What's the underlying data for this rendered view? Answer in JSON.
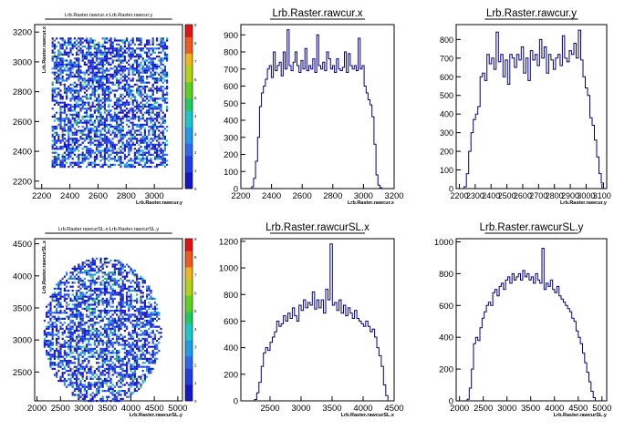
{
  "chart_data": [
    {
      "type": "heatmap",
      "title": "Lrb.Raster.rawcur.x:Lrb.Raster.rawcur.y",
      "xlabel": "Lrb.Raster.rawcur.y",
      "ylabel": "Lrb.Raster.rawcur.x",
      "xlim": [
        2150,
        3200
      ],
      "ylim": [
        2150,
        3250
      ],
      "xticks": [
        "2200",
        "2400",
        "2600",
        "2800",
        "3000"
      ],
      "yticks": [
        "3200",
        "3000",
        "2800",
        "2600",
        "2400",
        "2200"
      ],
      "zlim": [
        0,
        9
      ],
      "zticks": [
        "0",
        "1",
        "2",
        "3",
        "4",
        "5",
        "6",
        "7",
        "8",
        "9"
      ],
      "fill": {
        "shape": "rectangle",
        "x_range": [
          2270,
          3090
        ],
        "y_range": [
          2290,
          3170
        ]
      },
      "colors": {
        "low": "#1f2fd0",
        "high": "#ff0000"
      }
    },
    {
      "type": "bar",
      "title": "Lrb.Raster.rawcur.x",
      "xlabel": "Lrb.Raster.rawcur.x",
      "xlim": [
        2200,
        3200
      ],
      "ylim": [
        0,
        960
      ],
      "xticks": [
        "2200",
        "2400",
        "2600",
        "2800",
        "3000",
        "3200"
      ],
      "yticks": [
        "0",
        "100",
        "200",
        "300",
        "400",
        "500",
        "600",
        "700",
        "800",
        "900"
      ],
      "bin_edges": [
        2270,
        3120
      ],
      "values": [
        10,
        60,
        160,
        300,
        480,
        560,
        600,
        640,
        700,
        720,
        650,
        800,
        690,
        720,
        740,
        660,
        800,
        700,
        930,
        720,
        690,
        740,
        800,
        720,
        680,
        750,
        700,
        820,
        690,
        720,
        700,
        760,
        680,
        900,
        720,
        700,
        740,
        690,
        800,
        760,
        700,
        720,
        680,
        760,
        700,
        690,
        710,
        800,
        680,
        790,
        720,
        700,
        720,
        690,
        880,
        700,
        720,
        600,
        560,
        520,
        490,
        420,
        260,
        80,
        20,
        5
      ],
      "colors": {
        "line": "#000080"
      }
    },
    {
      "type": "bar",
      "title": "Lrb.Raster.rawcur.y",
      "xlabel": "Lrb.Raster.rawcur.y",
      "xlim": [
        2180,
        3130
      ],
      "ylim": [
        0,
        880
      ],
      "xticks": [
        "2200",
        "2300",
        "2400",
        "2500",
        "2600",
        "2700",
        "2800",
        "2900",
        "3000",
        "3100"
      ],
      "yticks": [
        "0",
        "100",
        "200",
        "300",
        "400",
        "500",
        "600",
        "700",
        "800"
      ],
      "bin_edges": [
        2230,
        3110
      ],
      "values": [
        10,
        80,
        200,
        300,
        370,
        400,
        440,
        600,
        620,
        580,
        720,
        670,
        700,
        640,
        840,
        680,
        720,
        600,
        690,
        560,
        720,
        700,
        650,
        720,
        690,
        760,
        620,
        700,
        580,
        740,
        690,
        720,
        660,
        800,
        700,
        760,
        620,
        720,
        690,
        640,
        700,
        720,
        660,
        820,
        700,
        680,
        740,
        720,
        780,
        700,
        850,
        690,
        600,
        540,
        500,
        380,
        340,
        260,
        170,
        80,
        30
      ],
      "colors": {
        "line": "#000080"
      }
    },
    {
      "type": "heatmap",
      "title": "Lrb.Raster.rawcurSL.x:Lrb.Raster.rawcurSL.y",
      "xlabel": "Lrb.Raster.rawcurSL.y",
      "ylabel": "Lrb.Raster.rawcurSL.x",
      "xlim": [
        1950,
        5100
      ],
      "ylim": [
        2050,
        4580
      ],
      "xticks": [
        "2000",
        "2500",
        "3000",
        "3500",
        "4000",
        "4500",
        "5000"
      ],
      "yticks": [
        "4500",
        "4000",
        "3500",
        "3000",
        "2500"
      ],
      "zlim": [
        0,
        9
      ],
      "zticks": [
        "0",
        "1",
        "2",
        "3",
        "4",
        "5",
        "6",
        "7",
        "8",
        "9"
      ],
      "fill": {
        "shape": "ellipse",
        "cx": 3370,
        "cy": 3150,
        "rx": 1260,
        "ry": 1150
      },
      "colors": {
        "low": "#1f2fd0",
        "high": "#ff0000"
      }
    },
    {
      "type": "bar",
      "title": "Lrb.Raster.rawcurSL.x",
      "xlabel": "Lrb.Raster.rawcurSL.x",
      "xlim": [
        2030,
        4500
      ],
      "ylim": [
        0,
        1220
      ],
      "xticks": [
        "2500",
        "3000",
        "3500",
        "4000",
        "4500"
      ],
      "yticks": [
        "0",
        "200",
        "400",
        "600",
        "800",
        "1000",
        "1200"
      ],
      "bin_edges": [
        2250,
        4400
      ],
      "values": [
        10,
        60,
        140,
        260,
        360,
        400,
        380,
        440,
        480,
        520,
        600,
        560,
        580,
        640,
        600,
        660,
        620,
        700,
        640,
        600,
        720,
        680,
        760,
        700,
        740,
        720,
        820,
        690,
        760,
        700,
        760,
        660,
        840,
        760,
        1180,
        720,
        740,
        680,
        760,
        660,
        720,
        640,
        700,
        660,
        620,
        680,
        620,
        600,
        580,
        560,
        600,
        560,
        520,
        540,
        480,
        400,
        340,
        260,
        120,
        40
      ],
      "colors": {
        "line": "#000080"
      }
    },
    {
      "type": "bar",
      "title": "Lrb.Raster.rawcurSL.y",
      "xlabel": "Lrb.Raster.rawcurSL.y",
      "xlim": [
        1930,
        5100
      ],
      "ylim": [
        0,
        1020
      ],
      "xticks": [
        "2000",
        "2500",
        "3000",
        "3500",
        "4000",
        "4500",
        "5000"
      ],
      "yticks": [
        "0",
        "200",
        "400",
        "600",
        "800",
        "1000"
      ],
      "bin_edges": [
        2160,
        4860
      ],
      "values": [
        10,
        80,
        200,
        360,
        400,
        380,
        460,
        520,
        560,
        600,
        620,
        600,
        680,
        700,
        660,
        720,
        740,
        700,
        760,
        780,
        740,
        800,
        760,
        780,
        800,
        760,
        820,
        780,
        800,
        760,
        780,
        740,
        800,
        760,
        740,
        960,
        700,
        740,
        720,
        760,
        700,
        680,
        720,
        660,
        640,
        620,
        600,
        580,
        560,
        520,
        500,
        440,
        400,
        360,
        300,
        240,
        180,
        120,
        60,
        20
      ],
      "colors": {
        "line": "#000080"
      }
    }
  ]
}
